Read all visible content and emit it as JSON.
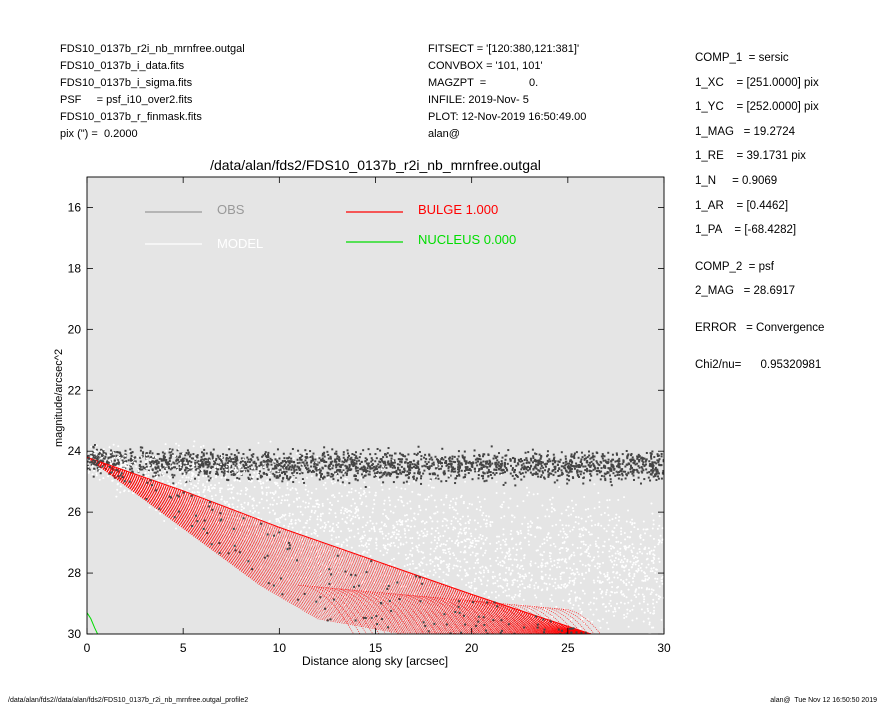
{
  "header_left": [
    "FDS10_0137b_r2i_nb_mrnfree.outgal",
    "FDS10_0137b_i_data.fits",
    "FDS10_0137b_i_sigma.fits",
    "PSF     = psf_i10_over2.fits",
    "FDS10_0137b_r_finmask.fits",
    "pix (\") =  0.2000"
  ],
  "header_mid": [
    "FITSECT = '[120:380,121:381]'",
    "CONVBOX = '101, 101'",
    "MAGZPT  =              0.",
    "INFILE: 2019-Nov- 5",
    "PLOT: 12-Nov-2019 16:50:49.00",
    "alan@"
  ],
  "header_right": [
    "COMP_1  = sersic",
    "1_XC    = [251.0000] pix",
    "1_YC    = [252.0000] pix",
    "1_MAG   = 19.2724",
    "1_RE    = 39.1731 pix",
    "1_N     = 0.9069",
    "1_AR    = [0.4462]",
    "1_PA    = [-68.4282]",
    "",
    "COMP_2  = psf",
    "2_MAG   = 28.6917",
    "",
    "ERROR   = Convergence",
    "",
    "Chi2/nu=      0.95320981"
  ],
  "footer": {
    "left": "/data/alan/fds2//data/alan/fds2/FDS10_0137b_r2i_nb_mrnfree.outgal_profile2",
    "right": "alan@  Tue Nov 12 16:50:50 2019"
  },
  "colors": {
    "plot_bg": "#e5e5e5",
    "obs": "#444444",
    "model": "#ffffff",
    "bulge": "#ff0000",
    "nucleus": "#00dd00",
    "legend_obs_text": "#999999"
  },
  "chart_data": {
    "type": "scatter",
    "title": "/data/alan/fds2/FDS10_0137b_r2i_nb_mrnfree.outgal",
    "xlabel": "Distance along sky [arcsec]",
    "ylabel": "magnitude/arcsec^2",
    "xlim": [
      0,
      30
    ],
    "ylim": [
      30,
      15
    ],
    "y_inverted": true,
    "x_ticks": [
      0,
      5,
      10,
      15,
      20,
      25,
      30
    ],
    "y_ticks": [
      16,
      18,
      20,
      22,
      24,
      26,
      28,
      30
    ],
    "grid": false,
    "legend": [
      {
        "label": "OBS",
        "color": "#999999"
      },
      {
        "label": "MODEL",
        "color": "#ffffff"
      },
      {
        "label": "BULGE  1.000",
        "color": "#ff0000"
      },
      {
        "label": "NUCLEUS  0.000",
        "color": "#00dd00"
      }
    ],
    "series": [
      {
        "name": "OBS",
        "kind": "scatter-band",
        "description_points": {
          "x": [
            0,
            5,
            10,
            15,
            20,
            25,
            30
          ],
          "y_center": [
            24.3,
            24.4,
            24.5,
            24.5,
            24.5,
            24.5,
            24.5
          ],
          "y_spread": [
            0.6,
            0.7,
            0.7,
            0.7,
            0.7,
            0.7,
            0.7
          ]
        }
      },
      {
        "name": "MODEL",
        "kind": "scatter-band",
        "description_points": {
          "x": [
            0,
            5,
            10,
            15,
            20,
            25,
            30
          ],
          "y_center": [
            24.3,
            25.2,
            26.0,
            26.8,
            27.4,
            27.8,
            28.0
          ],
          "y_spread": [
            0.5,
            1.2,
            1.8,
            2.0,
            2.0,
            2.0,
            2.0
          ]
        }
      },
      {
        "name": "BULGE  1.000",
        "kind": "ellipse-profile",
        "outer_edge": {
          "x": [
            0,
            5,
            10,
            15,
            20,
            26.2
          ],
          "y": [
            24.2,
            25.3,
            26.5,
            27.6,
            28.7,
            30
          ]
        },
        "inner_edge": {
          "x": [
            0,
            3,
            6,
            9,
            12,
            16.5
          ],
          "y": [
            24.2,
            25.6,
            27.0,
            28.4,
            29.5,
            30
          ]
        },
        "lower_fan": {
          "x": [
            10,
            13,
            17,
            21,
            25
          ],
          "y": [
            28.5,
            29.6,
            30,
            30,
            30
          ]
        }
      },
      {
        "name": "NUCLEUS  0.000",
        "kind": "line",
        "x": [
          0,
          0.2,
          0.4,
          0.55
        ],
        "y": [
          29.3,
          29.5,
          29.8,
          30.0
        ]
      }
    ]
  }
}
